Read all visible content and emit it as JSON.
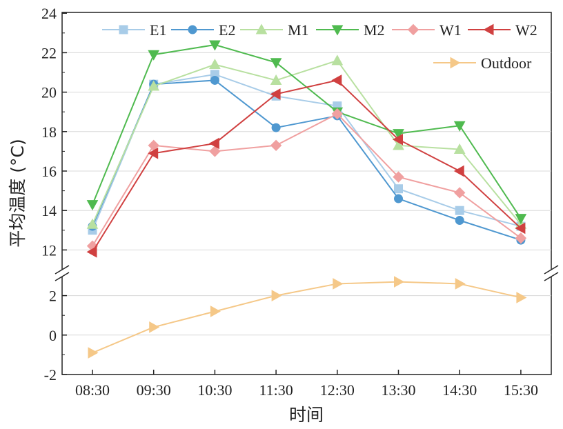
{
  "chart_data": {
    "type": "line",
    "title": "",
    "xlabel": "时间",
    "ylabel": "平均温度 (°C)",
    "categories": [
      "08:30",
      "09:30",
      "10:30",
      "11:30",
      "12:30",
      "13:30",
      "14:30",
      "15:30"
    ],
    "y_ticks": [
      "-2",
      "0",
      "2",
      "12",
      "14",
      "16",
      "18",
      "20",
      "22",
      "24"
    ],
    "y_axis_break": {
      "lower_range": [
        -2,
        3
      ],
      "upper_range": [
        11,
        24
      ]
    },
    "grid": true,
    "legend_position": "top-right",
    "series": [
      {
        "name": "E1",
        "color": "#a8cce8",
        "marker": "square",
        "values": [
          13.0,
          20.4,
          20.9,
          19.8,
          19.3,
          15.1,
          14.0,
          13.2
        ]
      },
      {
        "name": "E2",
        "color": "#4f98d0",
        "marker": "circle",
        "values": [
          13.2,
          20.4,
          20.6,
          18.2,
          18.8,
          14.6,
          13.5,
          12.5
        ]
      },
      {
        "name": "M1",
        "color": "#b8e0a0",
        "marker": "triangle-up",
        "values": [
          13.3,
          20.3,
          21.4,
          20.6,
          21.6,
          17.3,
          17.1,
          13.3
        ]
      },
      {
        "name": "M2",
        "color": "#4fba4f",
        "marker": "triangle-down",
        "values": [
          14.3,
          21.9,
          22.4,
          21.5,
          19.0,
          17.9,
          18.3,
          13.6
        ]
      },
      {
        "name": "W1",
        "color": "#f0a0a0",
        "marker": "diamond",
        "values": [
          12.2,
          17.3,
          17.0,
          17.3,
          18.9,
          15.7,
          14.9,
          12.6
        ]
      },
      {
        "name": "W2",
        "color": "#d04040",
        "marker": "triangle-left",
        "values": [
          11.9,
          16.9,
          17.4,
          19.9,
          20.6,
          17.6,
          16.0,
          13.1
        ]
      },
      {
        "name": "Outdoor",
        "color": "#f5c888",
        "marker": "triangle-right",
        "values": [
          -0.9,
          0.4,
          1.2,
          2.0,
          2.6,
          2.7,
          2.6,
          1.9
        ]
      }
    ]
  }
}
